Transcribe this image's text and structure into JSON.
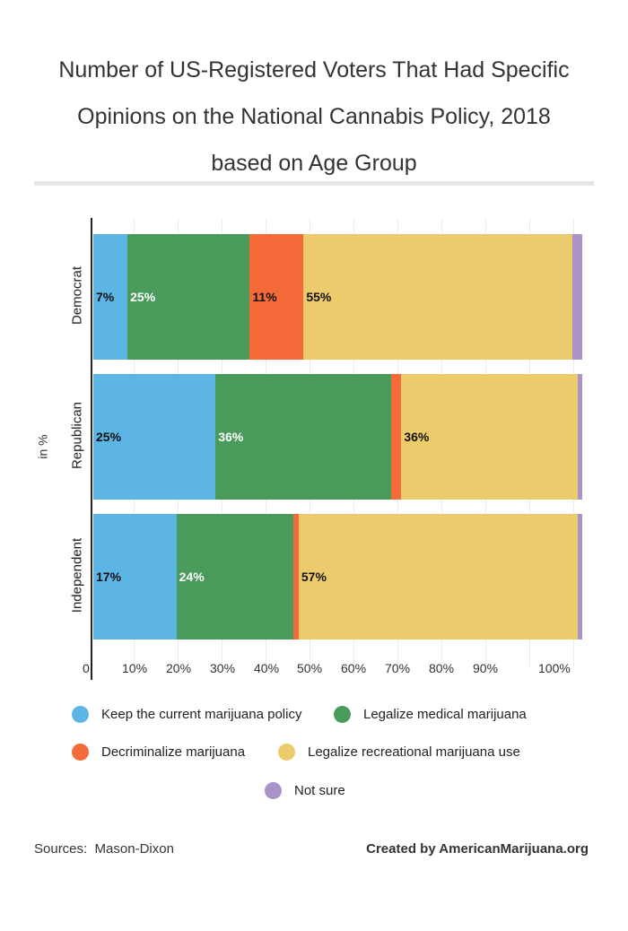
{
  "chart_data": {
    "type": "bar",
    "orientation": "horizontal",
    "stacked": true,
    "title_lines": [
      "Number of US-Registered Voters That Had Specific",
      "Opinions on the National Cannabis Policy, 2018",
      "based on Age Group"
    ],
    "ylabel": "in %",
    "categories": [
      "Democrat",
      "Republican",
      "Independent"
    ],
    "xticks": [
      "0",
      "10%",
      "20%",
      "30%",
      "40%",
      "50%",
      "60%",
      "70%",
      "80%",
      "90%",
      "100%"
    ],
    "series": [
      {
        "name": "Keep the current marijuana policy",
        "color": "#5DB5E5",
        "values": [
          7,
          25,
          17
        ],
        "labels": [
          "7%",
          "25%",
          "17%"
        ],
        "label_color": "#111"
      },
      {
        "name": "Legalize medical marijuana",
        "color": "#4A9A5C",
        "values": [
          25,
          36,
          24
        ],
        "labels": [
          "25%",
          "36%",
          "24%"
        ],
        "label_color": "#fff"
      },
      {
        "name": "Decriminalize marijuana",
        "color": "#F46A38",
        "values": [
          11,
          2,
          1
        ],
        "labels": [
          "11%",
          "",
          ""
        ],
        "label_color": "#111"
      },
      {
        "name": "Legalize recreational marijuana use",
        "color": "#ECCB6C",
        "values": [
          55,
          36,
          57
        ],
        "labels": [
          "55%",
          "36%",
          "57%"
        ],
        "label_color": "#111"
      },
      {
        "name": "Not sure",
        "color": "#A993C9",
        "values": [
          2,
          1,
          1
        ],
        "labels": [
          "",
          "",
          ""
        ],
        "label_color": "#111"
      }
    ]
  },
  "footer": {
    "sources_label": "Sources:",
    "sources_value": "Mason-Dixon",
    "credit": "Created by AmericanMarijuana.org"
  }
}
